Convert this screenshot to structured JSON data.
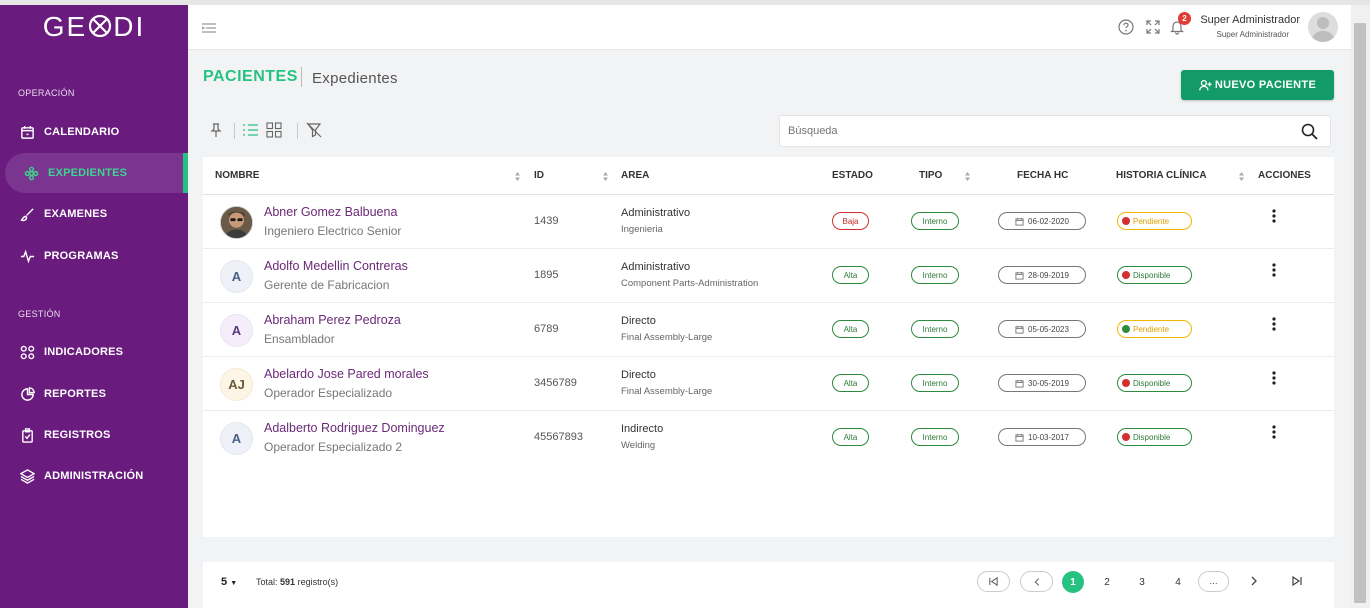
{
  "app": {
    "logo_text_left": "GE",
    "logo_text_right": "DI"
  },
  "sidebar": {
    "sections": [
      {
        "label": "OPERACIÓN"
      },
      {
        "label": "GESTIÓN"
      }
    ],
    "items": [
      {
        "label": "CALENDARIO",
        "icon": "calendar-icon"
      },
      {
        "label": "EXPEDIENTES",
        "icon": "flower-icon",
        "active": true
      },
      {
        "label": "EXAMENES",
        "icon": "brush-icon"
      },
      {
        "label": "PROGRAMAS",
        "icon": "pulse-icon"
      },
      {
        "label": "INDICADORES",
        "icon": "grid-icon"
      },
      {
        "label": "REPORTES",
        "icon": "pie-chart-icon"
      },
      {
        "label": "REGISTROS",
        "icon": "clipboard-icon"
      },
      {
        "label": "ADMINISTRACIÓN",
        "icon": "layers-icon"
      }
    ]
  },
  "header": {
    "notification_count": "2",
    "user_name": "Super Administrador",
    "user_role": "Super Administrador"
  },
  "page": {
    "title": "PACIENTES",
    "subtitle": "Expedientes",
    "new_button": "NUEVO PACIENTE",
    "search_placeholder": "Búsqueda"
  },
  "table": {
    "columns": [
      "NOMBRE",
      "ID",
      "AREA",
      "ESTADO",
      "TIPO",
      "FECHA HC",
      "HISTORIA CLÍNICA",
      "ACCIONES"
    ],
    "rows": [
      {
        "initials": "",
        "photo": true,
        "name": "Abner Gomez Balbuena",
        "job": "Ingeniero Electrico Senior",
        "id": "1439",
        "area": "Administrativo",
        "subarea": "Ingenieria",
        "estado": "Baja",
        "tipo": "Interno",
        "fecha": "06-02-2020",
        "historia": "Pendiente",
        "historia_dot": "#d32f2f"
      },
      {
        "initials": "A",
        "photo": false,
        "name": "Adolfo Medellin Contreras",
        "job": "Gerente de Fabricacion",
        "id": "1895",
        "area": "Administrativo",
        "subarea": "Component Parts-Administration",
        "estado": "Alta",
        "tipo": "Interno",
        "fecha": "28-09-2019",
        "historia": "Disponible",
        "historia_dot": "#d32f2f"
      },
      {
        "initials": "A",
        "photo": false,
        "name": "Abraham Perez Pedroza",
        "job": "Ensamblador",
        "id": "6789",
        "area": "Directo",
        "subarea": "Final Assembly-Large",
        "estado": "Alta",
        "tipo": "Interno",
        "fecha": "05-05-2023",
        "historia": "Pendiente",
        "historia_dot": "#2e8b3e"
      },
      {
        "initials": "AJ",
        "photo": false,
        "name": "Abelardo Jose Pared morales",
        "job": "Operador Especializado",
        "id": "3456789",
        "area": "Directo",
        "subarea": "Final Assembly-Large",
        "estado": "Alta",
        "tipo": "Interno",
        "fecha": "30-05-2019",
        "historia": "Disponible",
        "historia_dot": "#d32f2f"
      },
      {
        "initials": "A",
        "photo": false,
        "name": "Adalberto Rodriguez Dominguez",
        "job": "Operador Especializado 2",
        "id": "45567893",
        "area": "Indirecto",
        "subarea": "Welding",
        "estado": "Alta",
        "tipo": "Interno",
        "fecha": "10-03-2017",
        "historia": "Disponible",
        "historia_dot": "#d32f2f"
      }
    ]
  },
  "footer": {
    "page_size": "5",
    "total_label": "Total:",
    "total_value": "591",
    "total_suffix": "registro(s)",
    "pages": [
      "1",
      "2",
      "3",
      "4"
    ],
    "current_page": "1",
    "ellipsis": "..."
  },
  "colors": {
    "sidebar": "#6a1b7e",
    "accent": "#26c281",
    "button": "#129b68",
    "name_text": "#6b2a78"
  }
}
